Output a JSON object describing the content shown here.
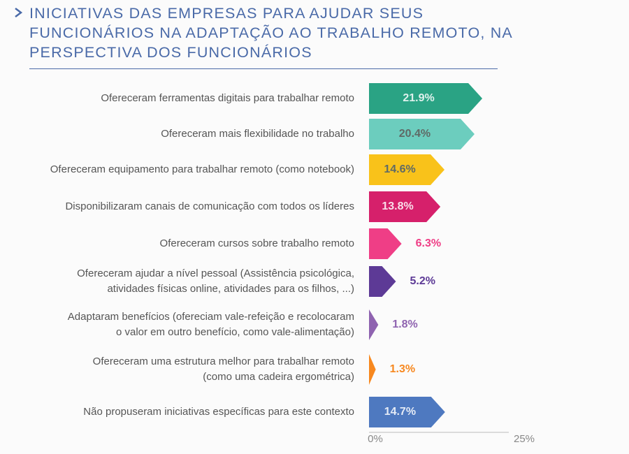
{
  "chart_data": {
    "type": "bar",
    "orientation": "horizontal",
    "title": "INICIATIVAS DAS EMPRESAS PARA AJUDAR SEUS\nFUNCIONÁRIOS NA ADAPTAÇÃO AO TRABALHO REMOTO, NA\nPERSPECTIVA DOS FUNCIONÁRIOS",
    "categories": [
      "Ofereceram ferramentas digitais para trabalhar remoto",
      "Ofereceram mais flexibilidade no trabalho",
      "Ofereceram equipamento para trabalhar remoto (como notebook)",
      "Disponibilizaram canais de comunicação com todos os líderes",
      "Ofereceram cursos sobre trabalho remoto",
      "Ofereceram ajudar a nível pessoal (Assistência psicológica,\natividades físicas online, atividades para os filhos, ...)",
      "Adaptaram benefícios (ofereciam vale-refeição e recolocaram\no valor em outro benefício, como vale-alimentação)",
      "Ofereceram uma estrutura melhor para trabalhar remoto\n(como uma cadeira ergométrica)",
      "Não propuseram iniciativas específicas para este contexto"
    ],
    "values": [
      21.9,
      20.4,
      14.6,
      13.8,
      6.3,
      5.2,
      1.8,
      1.3,
      14.7
    ],
    "value_labels": [
      "21.9%",
      "20.4%",
      "14.6%",
      "13.8%",
      "6.3%",
      "5.2%",
      "1.8%",
      "1.3%",
      "14.7%"
    ],
    "colors": [
      "#2aa384",
      "#6ccdbe",
      "#f9c21a",
      "#d6206b",
      "#ef3e86",
      "#5d3a96",
      "#8f63b0",
      "#f7881f",
      "#4e79c0"
    ],
    "xlim": [
      0,
      25
    ],
    "xticks": [
      {
        "value": 0,
        "label": "0%"
      },
      {
        "value": 25,
        "label": "25%"
      }
    ]
  }
}
